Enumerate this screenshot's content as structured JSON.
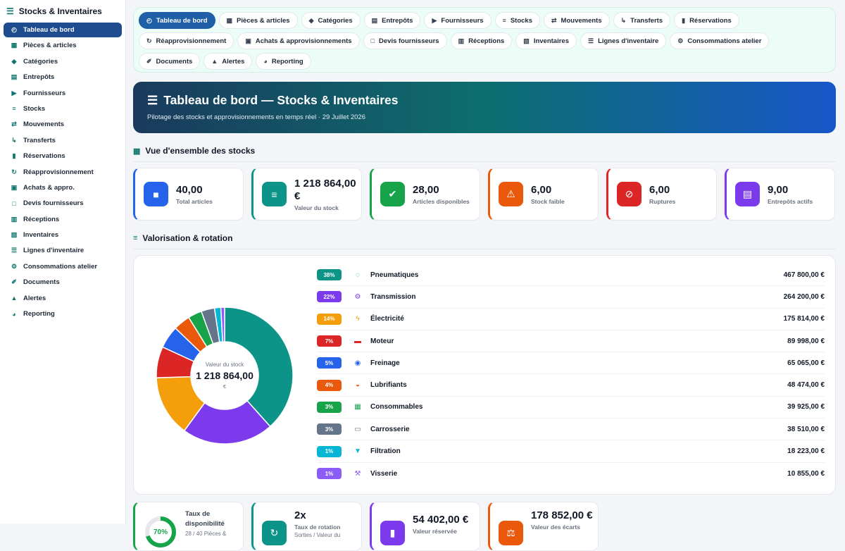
{
  "sidebar": {
    "title": "Stocks & Inventaires",
    "items": [
      {
        "label": "Tableau de bord",
        "icon": "◴",
        "active": true
      },
      {
        "label": "Pièces & articles",
        "icon": "▦"
      },
      {
        "label": "Catégories",
        "icon": "◆"
      },
      {
        "label": "Entrepôts",
        "icon": "▤"
      },
      {
        "label": "Fournisseurs",
        "icon": "▶"
      },
      {
        "label": "Stocks",
        "icon": "≡"
      },
      {
        "label": "Mouvements",
        "icon": "⇄"
      },
      {
        "label": "Transferts",
        "icon": "↳"
      },
      {
        "label": "Réservations",
        "icon": "▮"
      },
      {
        "label": "Réapprovisionnement",
        "icon": "↻"
      },
      {
        "label": "Achats & appro.",
        "icon": "▣"
      },
      {
        "label": "Devis fournisseurs",
        "icon": "□"
      },
      {
        "label": "Réceptions",
        "icon": "▥"
      },
      {
        "label": "Inventaires",
        "icon": "▧"
      },
      {
        "label": "Lignes d'inventaire",
        "icon": "☰"
      },
      {
        "label": "Consommations atelier",
        "icon": "⚙"
      },
      {
        "label": "Documents",
        "icon": "✐"
      },
      {
        "label": "Alertes",
        "icon": "▲"
      },
      {
        "label": "Reporting",
        "icon": "◕"
      }
    ]
  },
  "tabs": [
    {
      "label": "Tableau de bord",
      "icon": "◴",
      "active": true
    },
    {
      "label": "Pièces & articles",
      "icon": "▦"
    },
    {
      "label": "Catégories",
      "icon": "◆"
    },
    {
      "label": "Entrepôts",
      "icon": "▤"
    },
    {
      "label": "Fournisseurs",
      "icon": "▶"
    },
    {
      "label": "Stocks",
      "icon": "≡"
    },
    {
      "label": "Mouvements",
      "icon": "⇄"
    },
    {
      "label": "Transferts",
      "icon": "↳"
    },
    {
      "label": "Réservations",
      "icon": "▮"
    },
    {
      "label": "Réapprovisionnement",
      "icon": "↻"
    },
    {
      "label": "Achats & approvisionnements",
      "icon": "▣"
    },
    {
      "label": "Devis fournisseurs",
      "icon": "□"
    },
    {
      "label": "Réceptions",
      "icon": "▥"
    },
    {
      "label": "Inventaires",
      "icon": "▧"
    },
    {
      "label": "Lignes d'inventaire",
      "icon": "☰"
    },
    {
      "label": "Consommations atelier",
      "icon": "⚙"
    },
    {
      "label": "Documents",
      "icon": "✐"
    },
    {
      "label": "Alertes",
      "icon": "▲"
    },
    {
      "label": "Reporting",
      "icon": "◕"
    }
  ],
  "hero": {
    "title": "Tableau de bord — Stocks & Inventaires",
    "subtitle": "Pilotage des stocks et approvisionnements en temps réel · 29 Juillet 2026"
  },
  "overview": {
    "title": "Vue d'ensemble des stocks",
    "kpis": [
      {
        "value": "40,00",
        "label": "Total articles",
        "color": "#2563eb",
        "icon": "■"
      },
      {
        "value": "1 218 864,00 €",
        "label": "Valeur du stock",
        "color": "#0d9488",
        "icon": "≡"
      },
      {
        "value": "28,00",
        "label": "Articles disponibles",
        "color": "#16a34a",
        "icon": "✔"
      },
      {
        "value": "6,00",
        "label": "Stock faible",
        "color": "#ea580c",
        "icon": "⚠"
      },
      {
        "value": "6,00",
        "label": "Ruptures",
        "color": "#dc2626",
        "icon": "⊘"
      },
      {
        "value": "9,00",
        "label": "Entrepôts actifs",
        "color": "#7c3aed",
        "icon": "▤"
      }
    ]
  },
  "valorisation": {
    "title": "Valorisation & rotation",
    "center_label": "Valeur du stock",
    "center_value": "1 218 864,00",
    "center_unit": "€"
  },
  "categories": [
    {
      "pct": "38%",
      "name": "Pneumatiques",
      "amount": "467 800,00 €",
      "value": 467800,
      "color": "#0d9488",
      "icon": "◌"
    },
    {
      "pct": "22%",
      "name": "Transmission",
      "amount": "264 200,00 €",
      "value": 264200,
      "color": "#7c3aed",
      "icon": "⚙"
    },
    {
      "pct": "14%",
      "name": "Électricité",
      "amount": "175 814,00 €",
      "value": 175814,
      "color": "#f59e0b",
      "icon": "ϟ"
    },
    {
      "pct": "7%",
      "name": "Moteur",
      "amount": "89 998,00 €",
      "value": 89998,
      "color": "#dc2626",
      "icon": "▬"
    },
    {
      "pct": "5%",
      "name": "Freinage",
      "amount": "65 065,00 €",
      "value": 65065,
      "color": "#2563eb",
      "icon": "◉"
    },
    {
      "pct": "4%",
      "name": "Lubrifiants",
      "amount": "48 474,00 €",
      "value": 48474,
      "color": "#ea580c",
      "icon": "◒"
    },
    {
      "pct": "3%",
      "name": "Consommables",
      "amount": "39 925,00 €",
      "value": 39925,
      "color": "#16a34a",
      "icon": "▦"
    },
    {
      "pct": "3%",
      "name": "Carrosserie",
      "amount": "38 510,00 €",
      "value": 38510,
      "color": "#64748b",
      "icon": "▭"
    },
    {
      "pct": "1%",
      "name": "Filtration",
      "amount": "18 223,00 €",
      "value": 18223,
      "color": "#06b6d4",
      "icon": "▼"
    },
    {
      "pct": "1%",
      "name": "Visserie",
      "amount": "10 855,00 €",
      "value": 10855,
      "color": "#8b5cf6",
      "icon": "⚒"
    }
  ],
  "bottom": {
    "availability": {
      "pct": "70%",
      "value": 0.7,
      "title": "Taux de disponibilité",
      "sub": "28 / 40 Pièces &",
      "color": "#16a34a"
    },
    "rotation": {
      "value": "2x",
      "label": "Taux de rotation",
      "sub": "Sorties / Valeur du",
      "color": "#0d9488",
      "icon": "↻"
    },
    "reserved": {
      "value": "54 402,00 €",
      "label": "Valeur réservée",
      "color": "#7c3aed",
      "icon": "▮"
    },
    "gaps": {
      "value": "178 852,00 €",
      "label": "Valeur des écarts",
      "color": "#ea580c",
      "icon": "⚖"
    }
  }
}
